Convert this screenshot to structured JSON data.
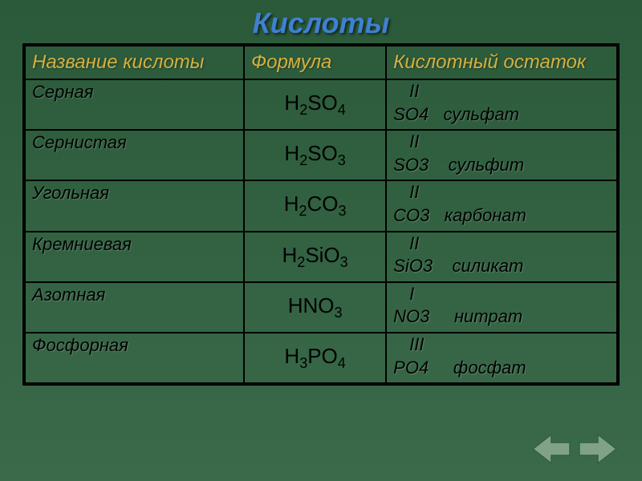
{
  "title": "Кислоты",
  "headers": {
    "name": "Название кислоты",
    "formula": "Формула",
    "residue": "Кислотный остаток"
  },
  "rows": [
    {
      "name": "Серная",
      "formula_base": "H",
      "formula_sub1": "2",
      "formula_mid": "SO",
      "formula_sub2": "4",
      "valence": "II",
      "residue": "SO4   сульфат"
    },
    {
      "name": "Сернистая",
      "formula_base": "H",
      "formula_sub1": "2",
      "formula_mid": "SO",
      "formula_sub2": "3",
      "valence": "II",
      "residue": "SO3    сульфит"
    },
    {
      "name": "Угольная",
      "formula_base": "H",
      "formula_sub1": "2",
      "formula_mid": "CO",
      "formula_sub2": "3",
      "valence": "II",
      "residue": "CO3   карбонат"
    },
    {
      "name": "Кремниевая",
      "formula_base": "H",
      "formula_sub1": "2",
      "formula_mid": "SiO",
      "formula_sub2": "3",
      "valence": "II",
      "residue": "SiO3    силикат"
    },
    {
      "name": "Азотная",
      "formula_base": "HNO",
      "formula_sub1": "",
      "formula_mid": "",
      "formula_sub2": "3",
      "valence": "I",
      "residue": "NO3     нитрат"
    },
    {
      "name": "Фосфорная",
      "formula_base": "H",
      "formula_sub1": "3",
      "formula_mid": "PO",
      "formula_sub2": "4",
      "valence": "III",
      "residue": "PO4     фосфат"
    }
  ],
  "colors": {
    "title_color": "#4080d0",
    "header_color": "#d4b040",
    "text_color": "#000000",
    "bg_gradient_top": "#2a5a3a",
    "bg_gradient_bottom": "#3a6a4a",
    "border_color": "#000000",
    "arrow_fill": "#c8dcc8",
    "arrow_stroke": "#2a5a3a"
  }
}
